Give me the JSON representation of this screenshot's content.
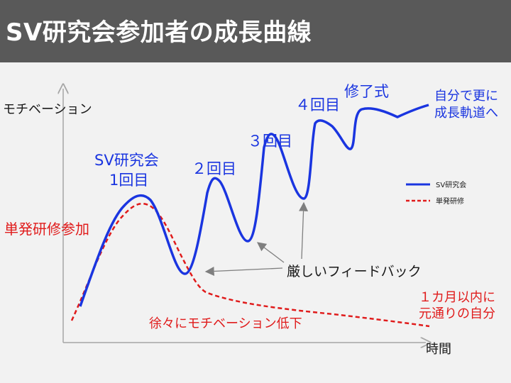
{
  "header": {
    "title": "SV研究会参加者の成長曲線"
  },
  "axes": {
    "y_label": "モチベーション",
    "x_label": "時間"
  },
  "legend": {
    "sv": "SV研究会",
    "single": "単発研修"
  },
  "labels": {
    "round1_line1": "SV研究会",
    "round1_line2": "1回目",
    "round2": "２回目",
    "round3": "３回目",
    "round4": "４回目",
    "graduation": "修了式",
    "growth_line1": "自分で更に",
    "growth_line2": "成長軌道へ",
    "single_join": "単発研修参加",
    "feedback": "厳しいフィードバック",
    "decline": "徐々にモチベーション低下",
    "reset_line1": "１カ月以内に",
    "reset_line2": "元通りの自分"
  },
  "colors": {
    "header_bg": "#595959",
    "sv_series": "#1a35e0",
    "single_series": "#e01b1b",
    "annotation_text": "#1a1a1a",
    "arrow": "#7f7f7f"
  }
}
